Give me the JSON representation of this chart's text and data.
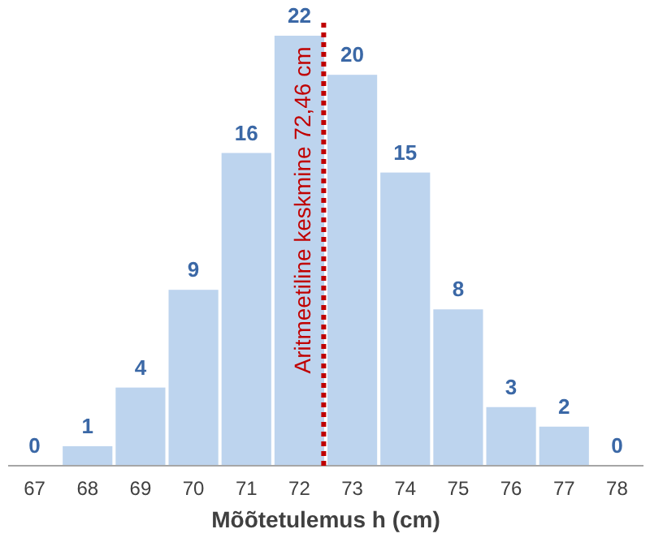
{
  "chart_data": {
    "type": "bar",
    "xlabel": "Mõõtetulemus h (cm)",
    "x": [
      67,
      68,
      69,
      70,
      71,
      72,
      73,
      74,
      75,
      76,
      77,
      78
    ],
    "values": [
      0,
      1,
      4,
      9,
      16,
      22,
      20,
      15,
      8,
      3,
      2,
      0
    ],
    "color": "#bdd4ee",
    "xlim": [
      66.5,
      78.5
    ],
    "xticks": [
      67,
      68,
      69,
      70,
      71,
      72,
      73,
      74,
      75,
      76,
      77,
      78
    ],
    "data_labels": true,
    "ref_lines": [
      {
        "axis": "x",
        "value": 72.46,
        "label": "Aritmeetiline keskmine 72,46 cm",
        "color": "#c00000",
        "line_style": "dotted"
      }
    ]
  }
}
